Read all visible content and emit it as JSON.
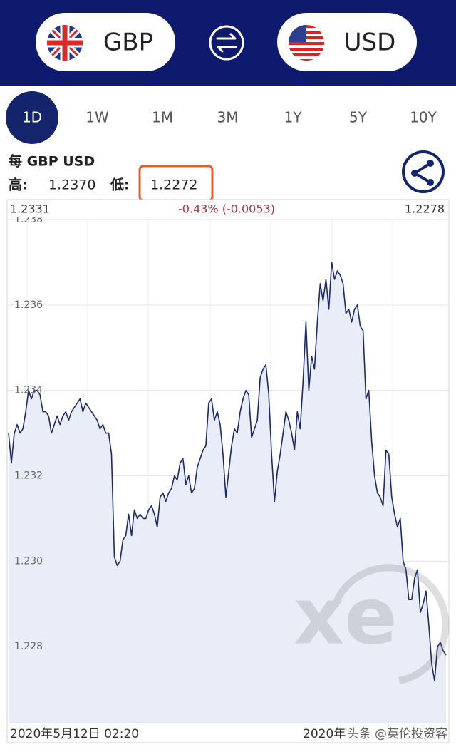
{
  "header": {
    "from_currency": "GBP",
    "to_currency": "USD"
  },
  "tabs": [
    "1D",
    "1W",
    "1M",
    "3M",
    "1Y",
    "5Y",
    "10Y"
  ],
  "pair_title": "每 GBP USD",
  "high_label": "高:",
  "high_value": "1.2370",
  "low_label": "低:",
  "low_value": "1.2272",
  "chart_data": {
    "type": "line",
    "open_label": "1.2331",
    "change_label": "-0.43% (-0.0053)",
    "close_label": "1.2278",
    "x_axis_labels": [
      "2020年5月12日 02:20",
      "2020年"
    ],
    "ylim": [
      1.2262,
      1.238
    ],
    "yticks": [
      1.228,
      {
        "value": 1.23,
        "label": "1.230"
      },
      1.232,
      1.234,
      1.236,
      1.238
    ],
    "grid": true,
    "series": [
      {
        "name": "GBP USD",
        "color": "#1c2a6b",
        "fill": "#e9edf8",
        "values": [
          1.233,
          1.2323,
          1.233,
          1.2332,
          1.233,
          1.2331,
          1.2335,
          1.234,
          1.2338,
          1.234,
          1.234,
          1.2339,
          1.2335,
          1.2335,
          1.2334,
          1.233,
          1.2332,
          1.2334,
          1.2332,
          1.2334,
          1.2335,
          1.2333,
          1.2335,
          1.2336,
          1.2337,
          1.2338,
          1.2335,
          1.2337,
          1.2336,
          1.2335,
          1.2334,
          1.2333,
          1.2331,
          1.2332,
          1.233,
          1.233,
          1.2325,
          1.2301,
          1.2299,
          1.23,
          1.2305,
          1.2306,
          1.2311,
          1.2306,
          1.2312,
          1.231,
          1.2311,
          1.231,
          1.231,
          1.2312,
          1.2313,
          1.2311,
          1.2308,
          1.2315,
          1.2316,
          1.2314,
          1.2316,
          1.2317,
          1.232,
          1.2319,
          1.2323,
          1.2324,
          1.2318,
          1.232,
          1.2316,
          1.2317,
          1.2322,
          1.2324,
          1.2326,
          1.2327,
          1.2337,
          1.2338,
          1.2333,
          1.2335,
          1.2332,
          1.2325,
          1.2315,
          1.2321,
          1.2327,
          1.2331,
          1.233,
          1.2335,
          1.2338,
          1.234,
          1.2339,
          1.2329,
          1.2331,
          1.2333,
          1.2343,
          1.2345,
          1.2346,
          1.2339,
          1.2325,
          1.2314,
          1.2321,
          1.2325,
          1.233,
          1.2335,
          1.2333,
          1.233,
          1.2326,
          1.2335,
          1.2331,
          1.2342,
          1.2356,
          1.234,
          1.2348,
          1.2345,
          1.2356,
          1.2365,
          1.2361,
          1.2366,
          1.2359,
          1.237,
          1.2366,
          1.2368,
          1.2367,
          1.2365,
          1.2358,
          1.2359,
          1.2356,
          1.2359,
          1.236,
          1.2355,
          1.2354,
          1.2338,
          1.234,
          1.2328,
          1.232,
          1.2316,
          1.2315,
          1.2313,
          1.2326,
          1.2325,
          1.2315,
          1.2311,
          1.2308,
          1.231,
          1.23,
          1.2298,
          1.2291,
          1.2291,
          1.2296,
          1.2298,
          1.2288,
          1.229,
          1.2293,
          1.2285,
          1.2276,
          1.2272,
          1.228,
          1.2281,
          1.2279,
          1.2278
        ]
      }
    ]
  },
  "watermark_logo": "xe",
  "watermark_text": "头条 @英伦投资客"
}
